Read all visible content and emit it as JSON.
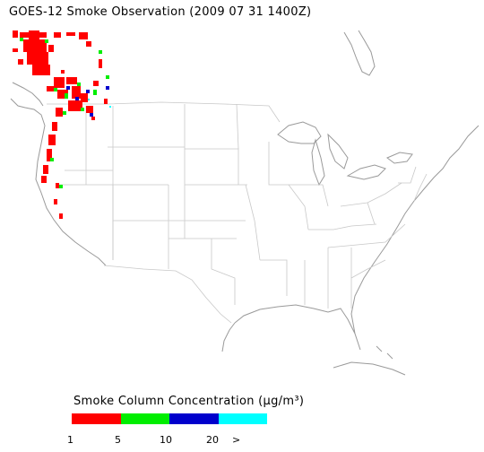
{
  "title": "GOES-12 Smoke Observation (2009 07 31  1400Z)",
  "legend": {
    "title": "Smoke Column Concentration (μg/m³)",
    "bins": [
      {
        "color": "#ff0000"
      },
      {
        "color": "#00ee00"
      },
      {
        "color": "#0000cc"
      },
      {
        "color": "#00ffff"
      }
    ],
    "ticks": [
      "1",
      "5",
      "10",
      "20",
      ">"
    ]
  },
  "colors": {
    "boundaries": "#c8c8c8",
    "coastline": "#9a9a9a"
  }
}
